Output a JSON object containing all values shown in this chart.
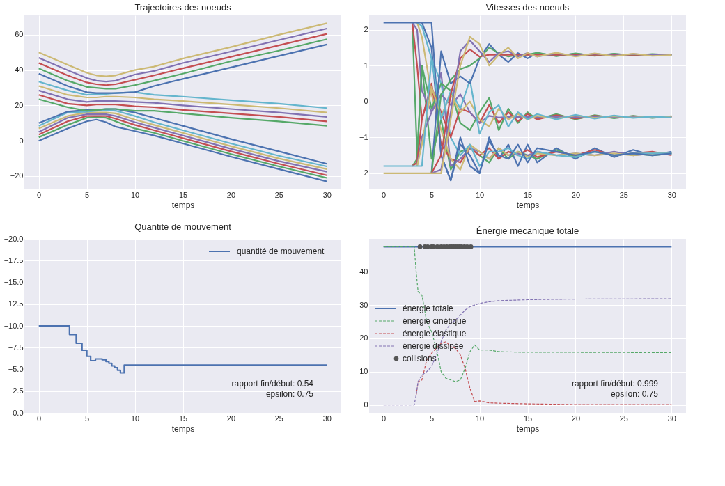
{
  "chart_data": [
    {
      "type": "line",
      "title": "Trajectoires des noeuds",
      "xlabel": "temps",
      "xlim": [
        -1.5,
        31.5
      ],
      "xticks": [
        0,
        5,
        10,
        15,
        20,
        25,
        30
      ],
      "ylim": [
        -27.5,
        71
      ],
      "yticks": [
        {
          "value": -20,
          "label": "−20"
        },
        0,
        20,
        40,
        60
      ],
      "grid": true,
      "x": [
        0,
        3,
        5,
        6,
        7,
        8,
        10,
        12,
        15,
        20,
        25,
        30
      ],
      "series": [
        {
          "color": "#4c72b0",
          "values": [
            0,
            7,
            11,
            12,
            10.5,
            8,
            5.5,
            3,
            -1.5,
            -9,
            -16,
            -23
          ]
        },
        {
          "color": "#55a868",
          "values": [
            2,
            9,
            13,
            13.5,
            13,
            11,
            7,
            4.5,
            0,
            -7.5,
            -14.5,
            -21
          ]
        },
        {
          "color": "#c44e52",
          "values": [
            3.5,
            11,
            14,
            14,
            14,
            12.5,
            9,
            6,
            1.5,
            -6,
            -13,
            -19.5
          ]
        },
        {
          "color": "#8172b2",
          "values": [
            5,
            13,
            15,
            15,
            15,
            14,
            10.5,
            7.5,
            3,
            -4.5,
            -11.5,
            -17.5
          ]
        },
        {
          "color": "#ccb974",
          "values": [
            7,
            14,
            16,
            16,
            16,
            15.5,
            12,
            9,
            4.5,
            -3,
            -10,
            -16
          ]
        },
        {
          "color": "#64b5cd",
          "values": [
            8.5,
            16,
            16.5,
            17,
            17.5,
            17,
            14,
            10.5,
            6,
            -1.5,
            -8.5,
            -14.5
          ]
        },
        {
          "color": "#4c72b0",
          "values": [
            10,
            16.5,
            17.5,
            17.5,
            18,
            18,
            16,
            13,
            8.5,
            1,
            -6,
            -13
          ]
        },
        {
          "color": "#55a868",
          "values": [
            23.5,
            19,
            17,
            17.5,
            18,
            18,
            17,
            17,
            15.5,
            13,
            11,
            8.5
          ]
        },
        {
          "color": "#c44e52",
          "values": [
            26,
            21,
            20,
            20.5,
            20.5,
            20.5,
            19.5,
            19,
            17.5,
            15.5,
            13.5,
            11
          ]
        },
        {
          "color": "#8172b2",
          "values": [
            28.5,
            23.5,
            22,
            22.5,
            22.5,
            22.5,
            22,
            21.5,
            20,
            18,
            16,
            13.5
          ]
        },
        {
          "color": "#ccb974",
          "values": [
            31,
            26,
            24.5,
            24.5,
            25,
            25,
            24.5,
            23.5,
            22.5,
            20.5,
            18.5,
            16
          ]
        },
        {
          "color": "#64b5cd",
          "values": [
            33.5,
            28.5,
            26,
            26.5,
            26.5,
            27,
            27.5,
            26,
            25,
            23,
            21,
            18.5
          ]
        },
        {
          "color": "#4c72b0",
          "values": [
            38,
            31,
            27.5,
            27,
            27,
            27,
            27.5,
            31,
            35,
            41.5,
            48,
            54.5
          ]
        },
        {
          "color": "#55a868",
          "values": [
            41,
            34,
            30.5,
            30,
            29.5,
            29.5,
            31.5,
            34,
            38,
            45,
            51,
            57.5
          ]
        },
        {
          "color": "#c44e52",
          "values": [
            44,
            37,
            33,
            32,
            31.5,
            32,
            34.5,
            37,
            41,
            47.5,
            54,
            60.5
          ]
        },
        {
          "color": "#8172b2",
          "values": [
            47,
            40,
            35.5,
            34,
            33.5,
            34,
            37.5,
            39.5,
            44,
            50.5,
            57,
            63.5
          ]
        },
        {
          "color": "#ccb974",
          "values": [
            50,
            43,
            38.5,
            37,
            36.5,
            37,
            40,
            42,
            46.5,
            53,
            60,
            66.5
          ]
        }
      ]
    },
    {
      "type": "line",
      "title": "Vitesses des noeuds",
      "xlabel": "temps",
      "xlim": [
        -1.5,
        31.5
      ],
      "xticks": [
        0,
        5,
        10,
        15,
        20,
        25,
        30
      ],
      "ylim": [
        -2.45,
        2.4
      ],
      "yticks": [
        {
          "value": -2,
          "label": "−2"
        },
        {
          "value": -1,
          "label": "−1"
        },
        0,
        1,
        2
      ],
      "grid": true,
      "x": [
        0,
        3,
        3.5,
        4,
        5,
        6,
        7,
        8,
        9,
        10,
        11,
        12,
        13,
        14,
        15,
        16,
        18,
        20,
        22,
        24,
        26,
        28,
        30
      ],
      "series": [
        {
          "color": "#4c72b0",
          "values": [
            null,
            null,
            null,
            2.2,
            1.5,
            -1.5,
            -2.2,
            -1.2,
            -1.5,
            -2.0,
            -1.0,
            -1.6,
            -1.2,
            -1.8,
            -1.2,
            -1.7,
            -1.3,
            -1.6,
            -1.3,
            -1.55,
            -1.35,
            -1.5,
            -1.4
          ]
        },
        {
          "color": "#55a868",
          "values": [
            null,
            2.2,
            -1.5,
            1.0,
            -1.6,
            -0.5,
            -1.9,
            -1.4,
            -1.3,
            -1.5,
            -1.7,
            -1.3,
            -1.6,
            -1.4,
            -1.5,
            -1.6,
            -1.35,
            -1.55,
            -1.4,
            -1.5,
            -1.45,
            -1.5,
            -1.45
          ]
        },
        {
          "color": "#c44e52",
          "values": [
            null,
            2.2,
            1.0,
            -0.5,
            0.5,
            -1.2,
            -1.6,
            -1.7,
            -1.3,
            -1.5,
            -1.3,
            -1.6,
            -1.4,
            -1.5,
            -1.35,
            -1.55,
            -1.4,
            -1.5,
            -1.35,
            -1.5,
            -1.45,
            -1.4,
            -1.5
          ]
        },
        {
          "color": "#8172b2",
          "values": [
            null,
            2.2,
            2.0,
            0.3,
            -0.3,
            0.8,
            -1.8,
            -1.6,
            -1.3,
            -1.4,
            -1.6,
            -1.3,
            -1.5,
            -1.45,
            -1.5,
            -1.4,
            -1.5,
            -1.45,
            -1.5,
            -1.4,
            -1.5,
            -1.45,
            -1.45
          ]
        },
        {
          "color": "#ccb974",
          "values": [
            null,
            null,
            2.2,
            1.8,
            0.2,
            -0.8,
            -1.6,
            -1.9,
            -1.2,
            -1.4,
            -1.6,
            -1.3,
            -1.5,
            -1.4,
            -1.55,
            -1.45,
            -1.5,
            -1.45,
            -1.5,
            -1.45,
            -1.5,
            -1.45,
            -1.45
          ]
        },
        {
          "color": "#64b5cd",
          "values": [
            null,
            null,
            2.2,
            2.1,
            1.2,
            0.5,
            -1.0,
            -1.5,
            -1.2,
            -1.8,
            -1.4,
            -1.4,
            -1.3,
            -1.5,
            -1.6,
            -1.4,
            -1.5,
            -1.55,
            -1.4,
            -1.5,
            -1.45,
            -1.45,
            -1.45
          ]
        },
        {
          "color": "#4c72b0",
          "values": [
            2.2,
            2.2,
            2.2,
            2.2,
            2.2,
            -1.5,
            -2.2,
            -1.0,
            -1.8,
            -2.0,
            -1.1,
            -1.5,
            -1.6,
            -1.2,
            -1.7,
            -1.3,
            -1.4,
            -1.5,
            -1.4,
            -1.5,
            -1.45,
            -1.5,
            -1.45
          ]
        },
        {
          "color": "#55a868",
          "values": [
            null,
            -1.8,
            -1.6,
            1.0,
            -0.2,
            0.5,
            0.3,
            -0.6,
            -0.8,
            -0.3,
            0.1,
            -0.8,
            -0.2,
            -0.6,
            -0.3,
            -0.5,
            -0.35,
            -0.5,
            -0.38,
            -0.47,
            -0.4,
            -0.46,
            -0.41
          ]
        },
        {
          "color": "#c44e52",
          "values": [
            null,
            -1.8,
            -1.7,
            -0.5,
            0.4,
            -0.3,
            -1.0,
            -0.2,
            -0.3,
            -0.6,
            -0.1,
            -0.6,
            -0.3,
            -0.55,
            -0.35,
            -0.5,
            -0.38,
            -0.48,
            -0.4,
            -0.45,
            -0.41,
            -0.44,
            -0.42
          ]
        },
        {
          "color": "#8172b2",
          "values": [
            null,
            null,
            -1.8,
            -1.0,
            -0.3,
            0.2,
            -0.1,
            0.2,
            -0.3,
            -0.6,
            -0.4,
            -0.45,
            -0.43,
            -0.43,
            -0.43,
            -0.43,
            -0.43,
            -0.43,
            -0.43,
            -0.43,
            -0.43,
            -0.43,
            -0.43
          ]
        },
        {
          "color": "#ccb974",
          "values": [
            null,
            null,
            -1.8,
            -1.2,
            0.4,
            -0.4,
            0.2,
            -0.3,
            0.0,
            -0.5,
            -0.7,
            -0.2,
            -0.5,
            -0.35,
            -0.5,
            -0.4,
            -0.48,
            -0.39,
            -0.46,
            -0.41,
            -0.45,
            -0.42,
            -0.44
          ]
        },
        {
          "color": "#64b5cd",
          "values": [
            -1.8,
            -1.8,
            -1.8,
            -1.8,
            1.2,
            -0.5,
            0.3,
            -0.2,
            0.6,
            -0.9,
            -0.3,
            -0.1,
            -0.7,
            -0.3,
            -0.5,
            -0.35,
            -0.5,
            -0.37,
            -0.48,
            -0.39,
            -0.46,
            -0.42,
            -0.45
          ]
        },
        {
          "color": "#4c72b0",
          "values": [
            null,
            null,
            null,
            null,
            -2,
            1.4,
            0.5,
            0.7,
            0.5,
            1.2,
            1.6,
            1.3,
            1.1,
            1.35,
            1.2,
            1.35,
            1.27,
            1.33,
            1.28,
            1.32,
            1.29,
            1.31,
            1.3
          ]
        },
        {
          "color": "#55a868",
          "values": [
            null,
            null,
            null,
            null,
            -2,
            0.2,
            0.6,
            0.9,
            1.0,
            1.2,
            1.5,
            1.35,
            1.25,
            1.3,
            1.3,
            1.36,
            1.26,
            1.34,
            1.27,
            1.33,
            1.28,
            1.32,
            1.29
          ]
        },
        {
          "color": "#c44e52",
          "values": [
            null,
            null,
            null,
            null,
            -2,
            -1.5,
            0.2,
            1.2,
            1.45,
            1.25,
            1.3,
            1.3,
            1.3,
            1.3,
            1.3,
            1.3,
            1.3,
            1.3,
            1.3,
            1.3,
            1.3,
            1.3,
            1.31
          ]
        },
        {
          "color": "#8172b2",
          "values": [
            null,
            null,
            null,
            null,
            -2,
            -1.9,
            -0.3,
            1.4,
            1.7,
            1.4,
            1.1,
            1.35,
            1.4,
            1.25,
            1.35,
            1.25,
            1.34,
            1.27,
            1.33,
            1.28,
            1.32,
            1.29,
            1.31
          ]
        },
        {
          "color": "#ccb974",
          "values": [
            -2,
            -2,
            -2,
            -2,
            -2,
            -2,
            -0.5,
            1.0,
            1.8,
            1.6,
            1.0,
            1.3,
            1.5,
            1.2,
            1.35,
            1.25,
            1.36,
            1.25,
            1.34,
            1.26,
            1.33,
            1.27,
            1.29
          ]
        }
      ]
    },
    {
      "type": "step",
      "title": "Quantité de mouvement",
      "xlabel": "temps",
      "xlim": [
        -1.5,
        31.5
      ],
      "xticks": [
        0,
        5,
        10,
        15,
        20,
        25,
        30
      ],
      "ylim": [
        0,
        -20
      ],
      "yticks": [
        {
          "value": 0,
          "label": "0.0"
        },
        {
          "value": -2.5,
          "label": "−2.5"
        },
        {
          "value": -5,
          "label": "−5.0"
        },
        {
          "value": -7.5,
          "label": "−7.5"
        },
        {
          "value": -10,
          "label": "−10.0"
        },
        {
          "value": -12.5,
          "label": "−12.5"
        },
        {
          "value": -15,
          "label": "−15.0"
        },
        {
          "value": -17.5,
          "label": "−17.5"
        },
        {
          "value": -20,
          "label": "−20.0"
        }
      ],
      "grid": true,
      "legend": "top right",
      "annotations": [
        "rapport fin/début: 0.54",
        "epsilon: 0.75"
      ],
      "x": [
        0,
        3.2,
        3.9,
        4.5,
        5,
        5.4,
        5.9,
        6.6,
        7,
        7.3,
        7.6,
        7.9,
        8.2,
        8.5,
        8.9,
        30
      ],
      "series": [
        {
          "name": "quantité de mouvement",
          "color": "#4c72b0",
          "line_style": "solid",
          "values": [
            -10,
            -9,
            -8,
            -7.2,
            -6.5,
            -6,
            -6.2,
            -6.1,
            -5.9,
            -5.7,
            -5.4,
            -5.2,
            -4.9,
            -4.6,
            -5.5,
            -5.5
          ]
        }
      ]
    },
    {
      "type": "line",
      "title": "Énergie mécanique totale",
      "xlabel": "temps",
      "xlim": [
        -1.5,
        31.5
      ],
      "xticks": [
        0,
        5,
        10,
        15,
        20,
        25,
        30
      ],
      "ylim": [
        -2.4,
        49.9
      ],
      "yticks": [
        0,
        10,
        20,
        30,
        40
      ],
      "grid": true,
      "legend": "left",
      "annotations": [
        "rapport fin/début: 0.999",
        "epsilon: 0.75"
      ],
      "series": [
        {
          "name": "énergie totale",
          "color": "#4c72b0",
          "line_style": "solid",
          "x": [
            0,
            30
          ],
          "values": [
            47.5,
            47.5
          ]
        },
        {
          "name": "énergie cinétique",
          "color": "#55a868",
          "line_style": "dashed",
          "x": [
            0,
            3.2,
            3.4,
            3.6,
            4,
            4.5,
            5,
            5.5,
            6,
            6.5,
            7,
            7.5,
            8,
            8.5,
            9,
            9.5,
            10,
            11,
            12,
            15,
            20,
            30
          ],
          "values": [
            47.5,
            47.5,
            40,
            34,
            33,
            25,
            22,
            17,
            10,
            8,
            7.5,
            7,
            7.5,
            11,
            16,
            18,
            16.5,
            16.5,
            16,
            15.8,
            15.8,
            15.7
          ]
        },
        {
          "name": "énergie élastique",
          "color": "#c44e52",
          "line_style": "dashed",
          "x": [
            3.4,
            3.6,
            4,
            4.5,
            5,
            5.5,
            6,
            6.5,
            7,
            7.5,
            8,
            8.5,
            9,
            9.5,
            10,
            11,
            12,
            15,
            20,
            30
          ],
          "values": [
            3,
            7,
            7.5,
            13.5,
            15.5,
            17,
            18.5,
            19,
            17.5,
            17,
            15,
            11,
            5,
            1,
            1.2,
            0.6,
            0.5,
            0.3,
            0.1,
            0.1
          ]
        },
        {
          "name": "énergie dissipée",
          "color": "#8172b2",
          "line_style": "dashed",
          "x": [
            0,
            3.2,
            3.4,
            3.6,
            4,
            4.5,
            5,
            5.5,
            6,
            6.5,
            7,
            7.5,
            8,
            8.5,
            9,
            9.5,
            10,
            11,
            12,
            15,
            20,
            30
          ],
          "values": [
            0,
            0,
            3,
            7,
            9,
            10,
            11.5,
            15,
            19,
            22.5,
            24.5,
            25.5,
            27,
            28.5,
            29.5,
            30,
            30.5,
            31,
            31.3,
            31.6,
            31.8,
            31.9
          ]
        },
        {
          "name": "collisions",
          "type": "scatter",
          "marker": "circle",
          "color": "#555555",
          "x": [
            3.8,
            4.3,
            4.6,
            5.0,
            5.2,
            5.6,
            6.0,
            6.3,
            6.6,
            6.9,
            7.1,
            7.3,
            7.5,
            7.7,
            7.9,
            8.1,
            8.4,
            8.7,
            9.1
          ],
          "values": [
            47.5,
            47.5,
            47.5,
            47.5,
            47.5,
            47.5,
            47.5,
            47.5,
            47.5,
            47.5,
            47.5,
            47.5,
            47.5,
            47.5,
            47.5,
            47.5,
            47.5,
            47.5,
            47.5
          ]
        }
      ]
    }
  ]
}
